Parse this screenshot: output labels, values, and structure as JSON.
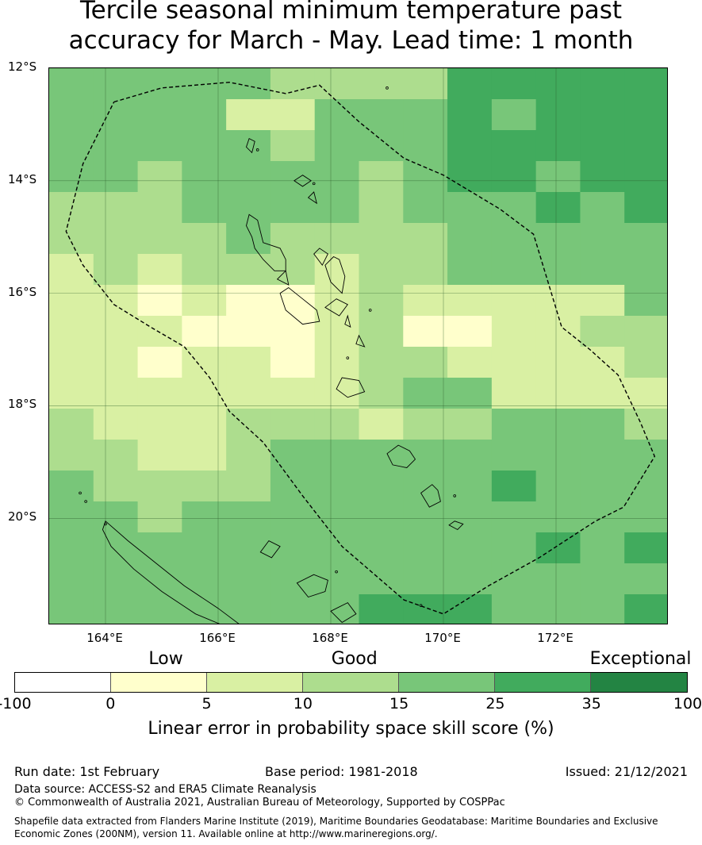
{
  "title_line1": "Tercile seasonal minimum temperature past",
  "title_line2": "accuracy for March - May. Lead time: 1 month",
  "map": {
    "lon_range": [
      163.0,
      174.0
    ],
    "lat_range": [
      -21.9,
      -12.0
    ],
    "lat_ticks": [
      {
        "value": -12,
        "label": "12°S"
      },
      {
        "value": -14,
        "label": "14°S"
      },
      {
        "value": -16,
        "label": "16°S"
      },
      {
        "value": -18,
        "label": "18°S"
      },
      {
        "value": -20,
        "label": "20°S"
      }
    ],
    "lon_ticks": [
      {
        "value": 164,
        "label": "164°E"
      },
      {
        "value": 166,
        "label": "166°E"
      },
      {
        "value": 168,
        "label": "168°E"
      },
      {
        "value": 170,
        "label": "170°E"
      },
      {
        "value": 172,
        "label": "172°E"
      }
    ],
    "grid_cols": 14,
    "grid_rows": 18,
    "skill_grid": [
      [
        4,
        4,
        4,
        4,
        4,
        3,
        3,
        3,
        3,
        5,
        5,
        5,
        5,
        5
      ],
      [
        4,
        4,
        4,
        4,
        2,
        2,
        4,
        4,
        4,
        5,
        4,
        5,
        5,
        5
      ],
      [
        4,
        4,
        4,
        4,
        4,
        3,
        4,
        4,
        4,
        5,
        5,
        5,
        5,
        5
      ],
      [
        4,
        4,
        3,
        4,
        4,
        4,
        4,
        3,
        4,
        5,
        5,
        4,
        5,
        5
      ],
      [
        3,
        3,
        3,
        4,
        4,
        4,
        4,
        3,
        4,
        4,
        4,
        5,
        4,
        5
      ],
      [
        3,
        3,
        3,
        3,
        4,
        3,
        3,
        3,
        3,
        4,
        4,
        4,
        4,
        4
      ],
      [
        2,
        3,
        2,
        3,
        3,
        3,
        2,
        3,
        3,
        4,
        4,
        4,
        4,
        4
      ],
      [
        2,
        2,
        1,
        2,
        1,
        1,
        2,
        3,
        2,
        2,
        2,
        2,
        2,
        4
      ],
      [
        2,
        2,
        2,
        1,
        1,
        1,
        2,
        3,
        1,
        1,
        2,
        2,
        3,
        3
      ],
      [
        2,
        2,
        1,
        2,
        2,
        1,
        2,
        3,
        3,
        2,
        2,
        2,
        2,
        3
      ],
      [
        2,
        2,
        2,
        2,
        2,
        2,
        2,
        3,
        4,
        4,
        2,
        2,
        2,
        2
      ],
      [
        3,
        2,
        2,
        2,
        3,
        3,
        3,
        2,
        3,
        3,
        4,
        4,
        4,
        3
      ],
      [
        3,
        3,
        2,
        2,
        3,
        4,
        4,
        4,
        4,
        4,
        4,
        4,
        4,
        4
      ],
      [
        4,
        3,
        3,
        3,
        3,
        4,
        4,
        4,
        4,
        4,
        5,
        4,
        4,
        4
      ],
      [
        4,
        4,
        3,
        4,
        4,
        4,
        4,
        4,
        4,
        4,
        4,
        4,
        4,
        4
      ],
      [
        4,
        4,
        4,
        4,
        4,
        4,
        4,
        4,
        4,
        4,
        4,
        5,
        4,
        5
      ],
      [
        4,
        4,
        4,
        4,
        4,
        4,
        4,
        4,
        4,
        4,
        4,
        4,
        4,
        4
      ],
      [
        4,
        4,
        4,
        4,
        4,
        4,
        4,
        5,
        5,
        5,
        4,
        4,
        4,
        5
      ]
    ],
    "eez_boundary": [
      [
        164.15,
        -12.6
      ],
      [
        165.0,
        -12.35
      ],
      [
        166.2,
        -12.25
      ],
      [
        167.2,
        -12.45
      ],
      [
        167.8,
        -12.3
      ],
      [
        168.5,
        -12.95
      ],
      [
        169.3,
        -13.6
      ],
      [
        170.0,
        -13.9
      ],
      [
        171.0,
        -14.5
      ],
      [
        171.6,
        -14.95
      ],
      [
        172.1,
        -16.6
      ],
      [
        172.6,
        -17.0
      ],
      [
        173.1,
        -17.45
      ],
      [
        173.5,
        -18.3
      ],
      [
        173.75,
        -18.9
      ],
      [
        173.2,
        -19.8
      ],
      [
        172.7,
        -20.05
      ],
      [
        171.7,
        -20.7
      ],
      [
        170.8,
        -21.2
      ],
      [
        170.0,
        -21.7
      ],
      [
        169.3,
        -21.45
      ],
      [
        168.2,
        -20.5
      ],
      [
        167.5,
        -19.6
      ],
      [
        166.8,
        -18.65
      ],
      [
        166.2,
        -18.1
      ],
      [
        165.85,
        -17.5
      ],
      [
        165.4,
        -16.95
      ],
      [
        164.8,
        -16.6
      ],
      [
        164.15,
        -16.2
      ],
      [
        163.6,
        -15.5
      ],
      [
        163.3,
        -14.9
      ],
      [
        163.6,
        -13.7
      ],
      [
        164.15,
        -12.6
      ]
    ],
    "islands": [
      [
        [
          166.6,
          -15.0
        ],
        [
          166.5,
          -14.8
        ],
        [
          166.55,
          -14.6
        ],
        [
          166.7,
          -14.7
        ],
        [
          166.8,
          -15.1
        ],
        [
          167.1,
          -15.2
        ],
        [
          167.2,
          -15.4
        ],
        [
          167.2,
          -15.6
        ],
        [
          167.0,
          -15.6
        ],
        [
          166.8,
          -15.4
        ],
        [
          166.65,
          -15.2
        ]
      ],
      [
        [
          167.25,
          -15.9
        ],
        [
          167.1,
          -16.0
        ],
        [
          167.2,
          -16.3
        ],
        [
          167.5,
          -16.55
        ],
        [
          167.8,
          -16.5
        ],
        [
          167.75,
          -16.3
        ],
        [
          167.5,
          -16.1
        ]
      ],
      [
        [
          168.05,
          -15.35
        ],
        [
          167.9,
          -15.5
        ],
        [
          168.0,
          -15.8
        ],
        [
          168.2,
          -16.0
        ],
        [
          168.25,
          -15.7
        ],
        [
          168.15,
          -15.4
        ]
      ],
      [
        [
          167.8,
          -15.2
        ],
        [
          167.7,
          -15.3
        ],
        [
          167.85,
          -15.5
        ],
        [
          167.95,
          -15.3
        ]
      ],
      [
        [
          168.1,
          -16.1
        ],
        [
          167.9,
          -16.25
        ],
        [
          168.15,
          -16.4
        ],
        [
          168.3,
          -16.2
        ]
      ],
      [
        [
          168.2,
          -17.5
        ],
        [
          168.1,
          -17.7
        ],
        [
          168.3,
          -17.85
        ],
        [
          168.6,
          -17.75
        ],
        [
          168.5,
          -17.55
        ]
      ],
      [
        [
          169.2,
          -18.7
        ],
        [
          169.0,
          -18.85
        ],
        [
          169.1,
          -19.05
        ],
        [
          169.35,
          -19.1
        ],
        [
          169.5,
          -18.95
        ],
        [
          169.4,
          -18.8
        ]
      ],
      [
        [
          169.8,
          -19.4
        ],
        [
          169.6,
          -19.55
        ],
        [
          169.75,
          -19.8
        ],
        [
          169.95,
          -19.7
        ],
        [
          169.9,
          -19.5
        ]
      ],
      [
        [
          166.55,
          -13.25
        ],
        [
          166.5,
          -13.4
        ],
        [
          166.6,
          -13.5
        ],
        [
          166.65,
          -13.3
        ]
      ],
      [
        [
          166.9,
          -20.4
        ],
        [
          166.75,
          -20.6
        ],
        [
          166.95,
          -20.7
        ],
        [
          167.1,
          -20.5
        ]
      ],
      [
        [
          167.7,
          -21.0
        ],
        [
          167.4,
          -21.15
        ],
        [
          167.6,
          -21.4
        ],
        [
          167.9,
          -21.3
        ],
        [
          167.95,
          -21.1
        ]
      ],
      [
        [
          168.3,
          -21.5
        ],
        [
          168.0,
          -21.65
        ],
        [
          168.2,
          -21.85
        ],
        [
          168.45,
          -21.7
        ]
      ],
      [
        [
          170.2,
          -20.05
        ],
        [
          170.1,
          -20.12
        ],
        [
          170.25,
          -20.2
        ],
        [
          170.35,
          -20.1
        ]
      ],
      [
        [
          167.2,
          -15.6
        ],
        [
          167.05,
          -15.75
        ],
        [
          167.25,
          -15.85
        ]
      ],
      [
        [
          167.7,
          -14.2
        ],
        [
          167.6,
          -14.3
        ],
        [
          167.75,
          -14.4
        ]
      ],
      [
        [
          167.5,
          -13.9
        ],
        [
          167.35,
          -14.0
        ],
        [
          167.5,
          -14.1
        ],
        [
          167.65,
          -14.0
        ]
      ],
      [
        [
          168.3,
          -16.4
        ],
        [
          168.25,
          -16.55
        ],
        [
          168.35,
          -16.6
        ]
      ],
      [
        [
          168.5,
          -16.75
        ],
        [
          168.45,
          -16.9
        ],
        [
          168.6,
          -16.95
        ]
      ]
    ],
    "new_caledonia": [
      [
        164.0,
        -20.05
      ],
      [
        164.4,
        -20.4
      ],
      [
        164.9,
        -20.8
      ],
      [
        165.4,
        -21.2
      ],
      [
        166.0,
        -21.6
      ],
      [
        166.4,
        -21.9
      ],
      [
        166.2,
        -21.95
      ],
      [
        165.6,
        -21.7
      ],
      [
        165.0,
        -21.3
      ],
      [
        164.5,
        -20.9
      ],
      [
        164.1,
        -20.5
      ],
      [
        163.95,
        -20.2
      ]
    ],
    "small_isles": [
      [
        163.55,
        -19.55
      ],
      [
        163.65,
        -19.7
      ],
      [
        164.0,
        -20.1
      ],
      [
        166.7,
        -13.45
      ],
      [
        167.7,
        -14.05
      ],
      [
        169.0,
        -12.35
      ],
      [
        170.2,
        -19.6
      ],
      [
        168.3,
        -17.15
      ],
      [
        168.1,
        -20.95
      ],
      [
        168.7,
        -16.3
      ],
      [
        169.6,
        -21.55
      ]
    ]
  },
  "colorbar": {
    "categories": [
      {
        "label": "Low",
        "position": 0.225
      },
      {
        "label": "Good",
        "position": 0.505
      },
      {
        "label": "Exceptional",
        "position": 0.93
      }
    ],
    "segments": [
      {
        "color": "#ffffff"
      },
      {
        "color": "#ffffcc"
      },
      {
        "color": "#d9f0a3"
      },
      {
        "color": "#addd8e"
      },
      {
        "color": "#78c679"
      },
      {
        "color": "#41ab5d"
      },
      {
        "color": "#238443"
      }
    ],
    "ticks": [
      "-100",
      "0",
      "5",
      "10",
      "15",
      "25",
      "35",
      "100"
    ],
    "label": "Linear error in probability space skill score (%)"
  },
  "footer": {
    "run_date": "Run date: 1st February",
    "base_period": "Base period: 1981-2018",
    "issued": "Issued: 21/12/2021",
    "data_source": "Data source: ACCESS-S2 and ERA5 Climate Reanalysis",
    "copyright": "© Commonwealth of Australia 2021, Australian Bureau of Meteorology, Supported by COSPPac",
    "shapefile_line1": "Shapefile data extracted from Flanders Marine Institute (2019), Maritime Boundaries Geodatabase: Maritime Boundaries and Exclusive",
    "shapefile_line2": "Economic Zones (200NM), version 11. Available online at http://www.marineregions.org/."
  }
}
